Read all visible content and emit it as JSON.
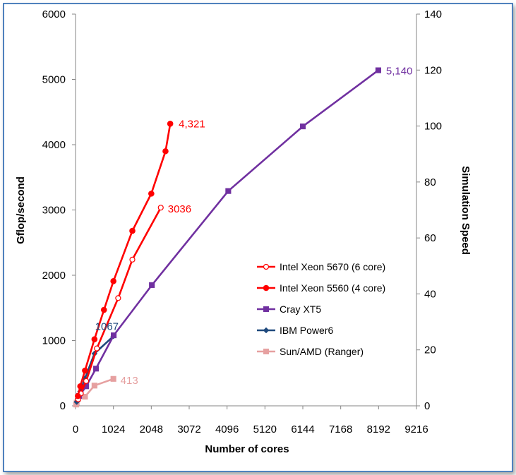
{
  "chart_data": {
    "type": "line",
    "xlabel": "Number of cores",
    "ylabel": "Gflop/second",
    "y2label": "Simulation Speed",
    "xlim": [
      0,
      9216
    ],
    "ylim": [
      0,
      6000
    ],
    "y2lim": [
      0,
      140
    ],
    "x_ticks": [
      "0",
      "1024",
      "2048",
      "3072",
      "4096",
      "5120",
      "6144",
      "7168",
      "8192",
      "9216"
    ],
    "y_ticks": [
      "0",
      "1000",
      "2000",
      "3000",
      "4000",
      "5000",
      "6000"
    ],
    "y2_ticks": [
      "0",
      "20",
      "40",
      "60",
      "80",
      "100",
      "120",
      "140"
    ],
    "grid": false,
    "legend_position": "right-middle",
    "series": [
      {
        "name": "Intel Xeon 5670 (6 core)",
        "color": "#ff0000",
        "marker": "open-circle",
        "x": [
          72,
          144,
          288,
          576,
          1152,
          1536,
          2304
        ],
        "y": [
          100,
          190,
          380,
          880,
          1650,
          2240,
          3036
        ]
      },
      {
        "name": "Intel Xeon 5560 (4 core)",
        "color": "#ff0000",
        "marker": "circle",
        "x": [
          64,
          128,
          256,
          512,
          768,
          1024,
          1536,
          2048,
          2432,
          2560
        ],
        "y": [
          150,
          300,
          540,
          1020,
          1470,
          1910,
          2680,
          3250,
          3900,
          4321
        ]
      },
      {
        "name": "Cray XT5",
        "color": "#7030a0",
        "marker": "square",
        "x": [
          96,
          288,
          552,
          1032,
          2064,
          4128,
          6144,
          8184
        ],
        "y": [
          150,
          300,
          570,
          1080,
          1850,
          3290,
          4280,
          5140
        ]
      },
      {
        "name": "IBM Power6",
        "color": "#1f497d",
        "marker": "diamond",
        "x": [
          32,
          64,
          128,
          256,
          512,
          1024
        ],
        "y": [
          60,
          110,
          220,
          420,
          800,
          1067
        ]
      },
      {
        "name": "Sun/AMD (Ranger)",
        "color": "#e6a0a0",
        "marker": "square",
        "x": [
          16,
          32,
          64,
          128,
          256,
          512,
          1024
        ],
        "y": [
          20,
          50,
          100,
          150,
          140,
          310,
          413
        ]
      }
    ],
    "annotations": [
      {
        "text": "4,321",
        "x": 2560,
        "y": 4321,
        "color": "#ff0000"
      },
      {
        "text": "3036",
        "x": 2304,
        "y": 3036,
        "color": "#ff0000"
      },
      {
        "text": "5,140",
        "x": 8184,
        "y": 5140,
        "color": "#7030a0"
      },
      {
        "text": "1067",
        "x": 1024,
        "y": 1067,
        "color": "#1f497d"
      },
      {
        "text": "413",
        "x": 1024,
        "y": 413,
        "color": "#e6a0a0"
      }
    ]
  }
}
